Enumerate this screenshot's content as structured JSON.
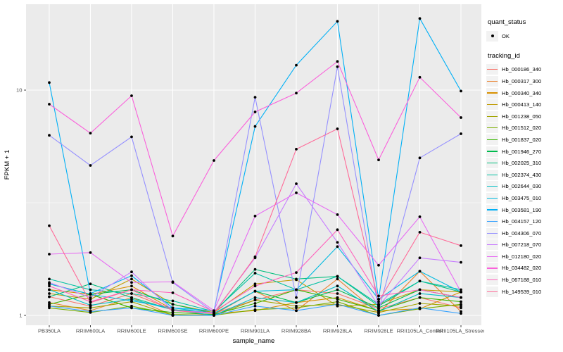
{
  "figure": {
    "y_axis_title": "FPKM + 1",
    "x_axis_title": "sample_name",
    "colors": {
      "panel_bg": "#EBEBEB",
      "grid": "#FFFFFF",
      "tick_label": "#4D4D4D",
      "axis_title": "#000000",
      "point": "#000000",
      "legend_key_bg": "#F2F2F2"
    }
  },
  "legend": {
    "quant_status": {
      "title": "quant_status",
      "items": [
        {
          "label": "OK",
          "symbol": "point"
        }
      ]
    },
    "tracking_id": {
      "title": "tracking_id",
      "items": [
        {
          "label": "Hb_000186_340",
          "color": "#F8766D"
        },
        {
          "label": "Hb_000317_300",
          "color": "#EA8331"
        },
        {
          "label": "Hb_000340_340",
          "color": "#D89000"
        },
        {
          "label": "Hb_000413_140",
          "color": "#C09B00"
        },
        {
          "label": "Hb_001238_050",
          "color": "#A3A500"
        },
        {
          "label": "Hb_001512_020",
          "color": "#7CAE00"
        },
        {
          "label": "Hb_001837_020",
          "color": "#39B600"
        },
        {
          "label": "Hb_001946_270",
          "color": "#00BB4E"
        },
        {
          "label": "Hb_002025_310",
          "color": "#00BF7D"
        },
        {
          "label": "Hb_002374_430",
          "color": "#00C1A3"
        },
        {
          "label": "Hb_002644_030",
          "color": "#00BFC4"
        },
        {
          "label": "Hb_003475_010",
          "color": "#00BAE0"
        },
        {
          "label": "Hb_003581_190",
          "color": "#00B0F6"
        },
        {
          "label": "Hb_004157_120",
          "color": "#35A2FF"
        },
        {
          "label": "Hb_004306_070",
          "color": "#9590FF"
        },
        {
          "label": "Hb_007218_070",
          "color": "#C77CFF"
        },
        {
          "label": "Hb_012180_020",
          "color": "#E76BF3"
        },
        {
          "label": "Hb_034482_020",
          "color": "#FA62DB"
        },
        {
          "label": "Hb_067188_010",
          "color": "#FF62BC"
        },
        {
          "label": "Hb_149539_010",
          "color": "#FF6A98"
        }
      ]
    }
  },
  "chart_data": {
    "type": "line",
    "title": "",
    "xlabel": "sample_name",
    "ylabel": "FPKM + 1",
    "scale_y": "log10",
    "ylim": [
      0.9,
      24
    ],
    "y_ticks": [
      1,
      10
    ],
    "y_minor_ticks": [
      3.162
    ],
    "grid": true,
    "legend_position": "right",
    "quant_status_all_points": "OK",
    "categories": [
      "PB350LA",
      "RRIM600LA",
      "RRIM600LE",
      "RRIM600SE",
      "RRIM600PE",
      "RRIM901LA",
      "RRIM928BA",
      "RRIM928LA",
      "RRIM928LE",
      "RRII105LA_Control",
      "RRII105LA_Stressed"
    ],
    "series": [
      {
        "name": "Hb_000186_340",
        "color": "#F8766D",
        "values": [
          1.21,
          1.1,
          1.25,
          1.06,
          1.02,
          1.17,
          1.3,
          1.25,
          1.07,
          1.2,
          1.08
        ]
      },
      {
        "name": "Hb_000317_300",
        "color": "#EA8331",
        "values": [
          1.14,
          1.05,
          1.2,
          1.0,
          1.01,
          1.28,
          1.05,
          1.45,
          1.02,
          1.57,
          1.04
        ]
      },
      {
        "name": "Hb_000340_340",
        "color": "#D89000",
        "values": [
          1.3,
          1.24,
          1.35,
          1.06,
          1.02,
          1.05,
          1.14,
          1.2,
          1.05,
          1.07,
          1.27
        ]
      },
      {
        "name": "Hb_000413_140",
        "color": "#C09B00",
        "values": [
          1.25,
          1.18,
          1.45,
          1.12,
          1.03,
          1.38,
          1.44,
          1.1,
          1.12,
          1.3,
          1.27
        ]
      },
      {
        "name": "Hb_001238_050",
        "color": "#A3A500",
        "values": [
          1.1,
          1.08,
          1.15,
          1.0,
          1.0,
          1.17,
          1.1,
          1.12,
          1.03,
          1.13,
          1.1
        ]
      },
      {
        "name": "Hb_001512_020",
        "color": "#7CAE00",
        "values": [
          1.08,
          1.03,
          1.1,
          1.01,
          1.0,
          1.06,
          1.08,
          1.15,
          1.0,
          1.07,
          1.12
        ]
      },
      {
        "name": "Hb_001837_020",
        "color": "#39B600",
        "values": [
          1.12,
          1.24,
          1.08,
          1.03,
          1.01,
          1.13,
          1.3,
          1.18,
          1.05,
          1.2,
          1.15
        ]
      },
      {
        "name": "Hb_001946_270",
        "color": "#00BB4E",
        "values": [
          1.38,
          1.24,
          1.3,
          1.12,
          1.02,
          1.28,
          1.14,
          1.3,
          1.08,
          1.3,
          1.2
        ]
      },
      {
        "name": "Hb_002025_310",
        "color": "#00BF7D",
        "values": [
          1.21,
          1.38,
          1.2,
          1.06,
          1.03,
          1.6,
          1.45,
          1.49,
          1.1,
          1.42,
          1.27
        ]
      },
      {
        "name": "Hb_002374_430",
        "color": "#00C1A3",
        "values": [
          1.45,
          1.3,
          1.25,
          1.16,
          1.04,
          1.54,
          1.3,
          1.49,
          1.12,
          1.42,
          1.3
        ]
      },
      {
        "name": "Hb_002644_030",
        "color": "#00BFC4",
        "values": [
          1.3,
          1.11,
          1.18,
          1.06,
          1.0,
          1.2,
          1.14,
          1.35,
          1.04,
          1.25,
          1.2
        ]
      },
      {
        "name": "Hb_003475_010",
        "color": "#00BAE0",
        "values": [
          1.38,
          1.24,
          1.16,
          1.08,
          1.02,
          1.28,
          1.3,
          2.02,
          1.18,
          1.57,
          1.27
        ]
      },
      {
        "name": "Hb_003581_190",
        "color": "#00B0F6",
        "values": [
          10.8,
          1.25,
          1.5,
          1.08,
          1.05,
          6.9,
          12.9,
          20.2,
          1.18,
          20.8,
          9.9
        ]
      },
      {
        "name": "Hb_004157_120",
        "color": "#35A2FF",
        "values": [
          1.1,
          1.04,
          1.08,
          1.0,
          1.0,
          1.1,
          1.05,
          1.12,
          1.0,
          1.08,
          1.02
        ]
      },
      {
        "name": "Hb_004306_070",
        "color": "#9590FF",
        "values": [
          6.3,
          4.63,
          6.2,
          1.4,
          1.03,
          9.3,
          1.2,
          12.7,
          1.05,
          5.0,
          6.4
        ]
      },
      {
        "name": "Hb_007218_070",
        "color": "#C77CFF",
        "values": [
          1.4,
          1.2,
          1.56,
          1.05,
          1.03,
          1.8,
          3.84,
          2.11,
          1.1,
          1.8,
          1.72
        ]
      },
      {
        "name": "Hb_012180_020",
        "color": "#E76BF3",
        "values": [
          1.87,
          1.9,
          1.4,
          1.41,
          1.05,
          2.76,
          3.5,
          2.8,
          1.67,
          2.74,
          1.27
        ]
      },
      {
        "name": "Hb_034482_020",
        "color": "#FA62DB",
        "values": [
          8.66,
          6.44,
          9.44,
          2.25,
          4.87,
          8.0,
          9.7,
          13.4,
          4.9,
          11.4,
          7.55
        ]
      },
      {
        "name": "Hb_067188_010",
        "color": "#FF62BC",
        "values": [
          1.35,
          1.15,
          1.3,
          1.26,
          1.04,
          1.35,
          1.55,
          2.4,
          1.22,
          1.3,
          1.2
        ]
      },
      {
        "name": "Hb_149539_010",
        "color": "#FF6A98",
        "values": [
          2.5,
          1.14,
          1.3,
          1.05,
          1.02,
          1.82,
          5.47,
          6.73,
          1.15,
          2.34,
          2.04
        ]
      }
    ]
  }
}
